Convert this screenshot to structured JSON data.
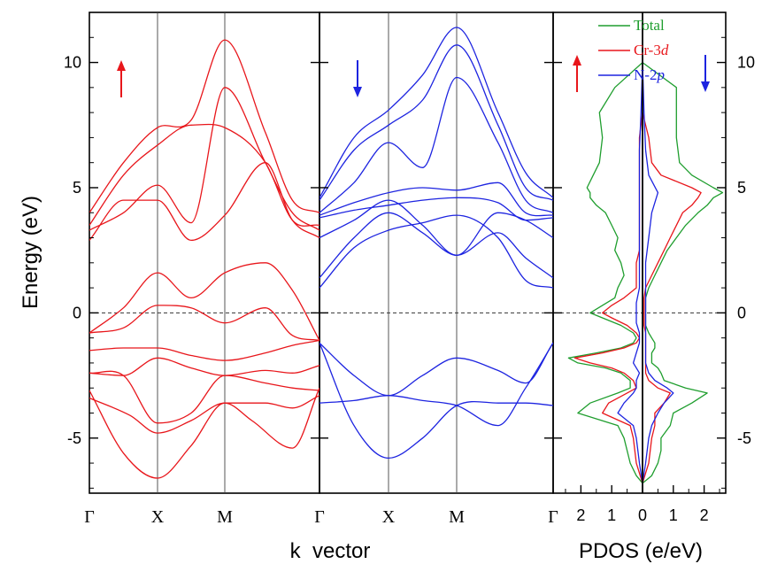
{
  "chart_data": {
    "type": "line",
    "ylabel": "Energy (eV)",
    "ylim": [
      -7.2,
      12.0
    ],
    "y_ticks": [
      -5,
      0,
      5,
      10
    ],
    "y_tick_labels": [
      "-5",
      "0",
      "5",
      "10"
    ],
    "fermi_level": 0,
    "colors": {
      "up": "#e8161b",
      "down": "#1d24e0",
      "total": "#1f9e2e"
    },
    "band_panels": {
      "xlabel": "k  vector",
      "k_points": [
        "Γ",
        "X",
        "M",
        "Γ"
      ],
      "k_positions": [
        0,
        1,
        2,
        3.4
      ],
      "spin_up": {
        "arrow": "up",
        "series": [
          {
            "x": [
              0,
              0.6,
              1,
              1.5,
              2,
              2.4,
              3,
              3.4
            ],
            "y": [
              -3.4,
              -4.1,
              -4.8,
              -4.3,
              -3.6,
              -4.3,
              -5.4,
              -3.0
            ]
          },
          {
            "x": [
              0,
              0.5,
              1,
              1.5,
              2,
              2.6,
              3,
              3.4
            ],
            "y": [
              -3.1,
              -5.6,
              -6.6,
              -5.3,
              -3.6,
              -3.6,
              -3.8,
              -3.3
            ]
          },
          {
            "x": [
              0,
              0.5,
              1,
              1.5,
              2,
              2.6,
              3,
              3.4
            ],
            "y": [
              -2.4,
              -2.5,
              -4.4,
              -4.0,
              -2.5,
              -2.8,
              -3.0,
              -3.1
            ]
          },
          {
            "x": [
              0,
              0.5,
              1,
              1.5,
              2,
              2.6,
              3,
              3.4
            ],
            "y": [
              -2.4,
              -2.5,
              -1.8,
              -2.2,
              -2.5,
              -2.3,
              -2.4,
              -2.1
            ]
          },
          {
            "x": [
              0,
              0.5,
              1,
              1.5,
              2,
              2.6,
              3,
              3.4
            ],
            "y": [
              -1.5,
              -1.4,
              -1.4,
              -1.7,
              -1.9,
              -1.6,
              -1.3,
              -1.1
            ]
          },
          {
            "x": [
              0,
              0.5,
              1,
              1.5,
              2,
              2.6,
              3,
              3.4
            ],
            "y": [
              -0.8,
              -0.6,
              0.3,
              0.2,
              -0.4,
              0.2,
              -0.9,
              -1.1
            ]
          },
          {
            "x": [
              0,
              0.5,
              1,
              1.5,
              2,
              2.6,
              3,
              3.4
            ],
            "y": [
              -0.8,
              0.2,
              1.6,
              0.6,
              1.6,
              2.0,
              0.9,
              -1.1
            ]
          },
          {
            "x": [
              0,
              0.5,
              1,
              1.5,
              2,
              2.6,
              3,
              3.4
            ],
            "y": [
              2.9,
              4.5,
              4.5,
              2.9,
              3.9,
              6.0,
              3.7,
              3.0
            ]
          },
          {
            "x": [
              0,
              0.5,
              1,
              1.5,
              2,
              2.6,
              3,
              3.4
            ],
            "y": [
              3.3,
              4.0,
              5.1,
              3.6,
              9.0,
              6.0,
              4.0,
              3.3
            ]
          },
          {
            "x": [
              0,
              0.5,
              1,
              1.5,
              2,
              2.6,
              3,
              3.4
            ],
            "y": [
              3.5,
              5.5,
              6.7,
              7.5,
              7.4,
              6.0,
              3.7,
              3.5
            ]
          },
          {
            "x": [
              0,
              0.5,
              1,
              1.5,
              2,
              2.6,
              3,
              3.4
            ],
            "y": [
              4.0,
              6.0,
              7.4,
              7.7,
              10.9,
              7.2,
              4.5,
              4.0
            ]
          }
        ]
      },
      "spin_down": {
        "arrow": "down",
        "series": [
          {
            "x": [
              0,
              0.5,
              1,
              1.5,
              2,
              2.6,
              3,
              3.4
            ],
            "y": [
              -3.6,
              -3.5,
              -3.3,
              -3.5,
              -3.7,
              -4.5,
              -3.0,
              -1.2
            ]
          },
          {
            "x": [
              0,
              0.5,
              1,
              1.5,
              2,
              2.6,
              3,
              3.4
            ],
            "y": [
              -1.2,
              -4.5,
              -5.8,
              -5.0,
              -3.7,
              -3.6,
              -3.6,
              -3.7
            ]
          },
          {
            "x": [
              0,
              0.5,
              1,
              1.5,
              2,
              2.6,
              3,
              3.4
            ],
            "y": [
              -1.2,
              -2.5,
              -3.3,
              -2.5,
              -1.8,
              -2.3,
              -2.8,
              -1.2
            ]
          },
          {
            "x": [
              0,
              0.5,
              1,
              1.5,
              2,
              2.6,
              3,
              3.4
            ],
            "y": [
              1.0,
              2.6,
              3.3,
              3.6,
              3.9,
              3.0,
              1.3,
              1.0
            ]
          },
          {
            "x": [
              0,
              0.5,
              1,
              1.5,
              2,
              2.6,
              3,
              3.4
            ],
            "y": [
              1.4,
              3.0,
              4.0,
              3.2,
              2.3,
              3.2,
              2.2,
              1.4
            ]
          },
          {
            "x": [
              0,
              0.5,
              1,
              1.5,
              2,
              2.6,
              3,
              3.4
            ],
            "y": [
              3.0,
              3.7,
              4.5,
              3.5,
              2.3,
              4.0,
              3.7,
              3.0
            ]
          },
          {
            "x": [
              0,
              0.5,
              1,
              1.5,
              2,
              2.6,
              3,
              3.4
            ],
            "y": [
              3.8,
              4.1,
              4.3,
              4.5,
              4.6,
              4.4,
              3.7,
              3.8
            ]
          },
          {
            "x": [
              0,
              0.5,
              1,
              1.5,
              2,
              2.6,
              3,
              3.4
            ],
            "y": [
              3.9,
              4.4,
              4.8,
              5.0,
              4.9,
              5.2,
              4.0,
              3.9
            ]
          },
          {
            "x": [
              0,
              0.5,
              1,
              1.5,
              2,
              2.6,
              3,
              3.4
            ],
            "y": [
              4.0,
              5.2,
              6.8,
              5.8,
              9.4,
              6.8,
              4.5,
              4.0
            ]
          },
          {
            "x": [
              0,
              0.5,
              1,
              1.5,
              2,
              2.6,
              3,
              3.4
            ],
            "y": [
              4.5,
              6.5,
              7.5,
              8.5,
              10.7,
              7.5,
              5.0,
              4.5
            ]
          },
          {
            "x": [
              0,
              0.5,
              1,
              1.5,
              2,
              2.6,
              3,
              3.4
            ],
            "y": [
              4.6,
              7.0,
              8.1,
              9.5,
              11.4,
              8.0,
              5.6,
              4.6
            ]
          }
        ]
      }
    },
    "pdos_panel": {
      "xlabel": "PDOS (e/eV)",
      "x_ticks": [
        -2,
        -1,
        0,
        1,
        2
      ],
      "x_tick_labels": [
        "2",
        "1",
        "0",
        "1",
        "2"
      ],
      "xlim": [
        -2.7,
        2.7
      ],
      "legend": {
        "placement": "top"
      },
      "series": [
        {
          "name": "Total",
          "color": "#1f9e2e",
          "energy": [
            -6.8,
            -6.5,
            -6.0,
            -5.5,
            -5.0,
            -4.5,
            -4.0,
            -3.6,
            -3.2,
            -3.0,
            -2.7,
            -2.4,
            -2.2,
            -2.0,
            -1.8,
            -1.6,
            -1.4,
            -1.2,
            -1.0,
            -0.8,
            -0.5,
            -0.2,
            0.0,
            0.3,
            0.6,
            1.0,
            1.5,
            2.0,
            2.5,
            3.0,
            3.5,
            4.0,
            4.3,
            4.6,
            4.8,
            5.0,
            5.5,
            6.0,
            7.0,
            8.0,
            9.0,
            10.0
          ],
          "up": [
            0.0,
            -0.2,
            -0.4,
            -0.5,
            -0.6,
            -0.8,
            -2.1,
            -1.7,
            -0.8,
            -0.4,
            -0.4,
            -0.7,
            -1.2,
            -2.1,
            -2.4,
            -1.5,
            -0.7,
            -0.3,
            -0.2,
            -0.3,
            -0.7,
            -1.3,
            -1.7,
            -1.3,
            -0.9,
            -0.8,
            -0.6,
            -0.7,
            -0.9,
            -0.8,
            -1.0,
            -1.2,
            -1.5,
            -1.7,
            -1.7,
            -1.8,
            -1.6,
            -1.4,
            -1.3,
            -1.4,
            -0.9,
            0.0
          ],
          "down": [
            0.0,
            0.3,
            0.5,
            0.6,
            0.6,
            0.9,
            1.0,
            1.6,
            2.1,
            1.4,
            0.7,
            0.6,
            0.5,
            0.3,
            0.3,
            0.3,
            0.4,
            0.4,
            0.3,
            0.2,
            0.1,
            0.1,
            0.1,
            0.1,
            0.1,
            0.2,
            0.4,
            0.6,
            0.8,
            1.1,
            1.4,
            1.8,
            2.1,
            2.3,
            2.6,
            2.3,
            1.6,
            1.2,
            1.1,
            1.1,
            1.1,
            0.0
          ]
        },
        {
          "name": "Cr-3d",
          "color": "#e8161b",
          "energy": [
            -6.8,
            -6.0,
            -5.0,
            -4.5,
            -4.0,
            -3.6,
            -3.2,
            -3.0,
            -2.7,
            -2.4,
            -2.2,
            -2.0,
            -1.8,
            -1.6,
            -1.4,
            -1.2,
            -1.0,
            -0.8,
            -0.5,
            -0.2,
            0.0,
            0.3,
            0.6,
            1.0,
            1.5,
            2.0,
            2.5,
            3.0,
            3.5,
            4.0,
            4.3,
            4.6,
            4.8,
            5.0,
            5.5,
            6.0,
            7.0,
            8.0
          ],
          "up": [
            0.0,
            -0.2,
            -0.3,
            -0.4,
            -1.3,
            -1.1,
            -0.5,
            -0.2,
            -0.3,
            -0.6,
            -1.0,
            -1.7,
            -2.2,
            -1.3,
            -0.6,
            -0.2,
            -0.1,
            -0.2,
            -0.5,
            -1.0,
            -1.3,
            -1.0,
            -0.6,
            -0.2,
            -0.2,
            -0.2,
            -0.1,
            -0.1,
            -0.1,
            -0.1,
            -0.1,
            -0.1,
            -0.1,
            -0.1,
            -0.1,
            -0.1,
            -0.1,
            0.0
          ],
          "down": [
            0.0,
            0.2,
            0.3,
            0.4,
            0.4,
            0.7,
            0.9,
            0.5,
            0.2,
            0.1,
            0.1,
            0.1,
            0.1,
            0.1,
            0.1,
            0.1,
            0.1,
            0.1,
            0.05,
            0.05,
            0.05,
            0.05,
            0.05,
            0.1,
            0.3,
            0.5,
            0.7,
            0.9,
            1.1,
            1.3,
            1.6,
            1.8,
            1.9,
            1.6,
            0.6,
            0.3,
            0.2,
            0.0
          ]
        },
        {
          "name": "N-2p",
          "color": "#1d24e0",
          "energy": [
            -6.8,
            -6.0,
            -5.0,
            -4.5,
            -4.0,
            -3.6,
            -3.2,
            -3.0,
            -2.7,
            -2.4,
            -2.0,
            -1.6,
            -1.2,
            -0.8,
            -0.4,
            0.0,
            0.4,
            1.0,
            2.0,
            3.0,
            4.0,
            4.8,
            5.5,
            6.5,
            8.0,
            10.0
          ],
          "up": [
            0.0,
            -0.1,
            -0.2,
            -0.3,
            -0.8,
            -0.6,
            -0.3,
            -0.2,
            -0.2,
            -0.1,
            -0.3,
            -0.2,
            -0.1,
            -0.1,
            -0.2,
            -0.2,
            -0.2,
            -0.1,
            -0.1,
            -0.1,
            -0.1,
            -0.1,
            -0.1,
            -0.1,
            -0.05,
            0.0
          ],
          "down": [
            0.0,
            0.1,
            0.2,
            0.3,
            0.5,
            0.7,
            1.0,
            0.8,
            0.4,
            0.2,
            0.1,
            0.1,
            0.1,
            0.1,
            0.1,
            0.1,
            0.1,
            0.1,
            0.1,
            0.2,
            0.3,
            0.5,
            0.2,
            0.1,
            0.05,
            0.0
          ]
        }
      ]
    }
  }
}
